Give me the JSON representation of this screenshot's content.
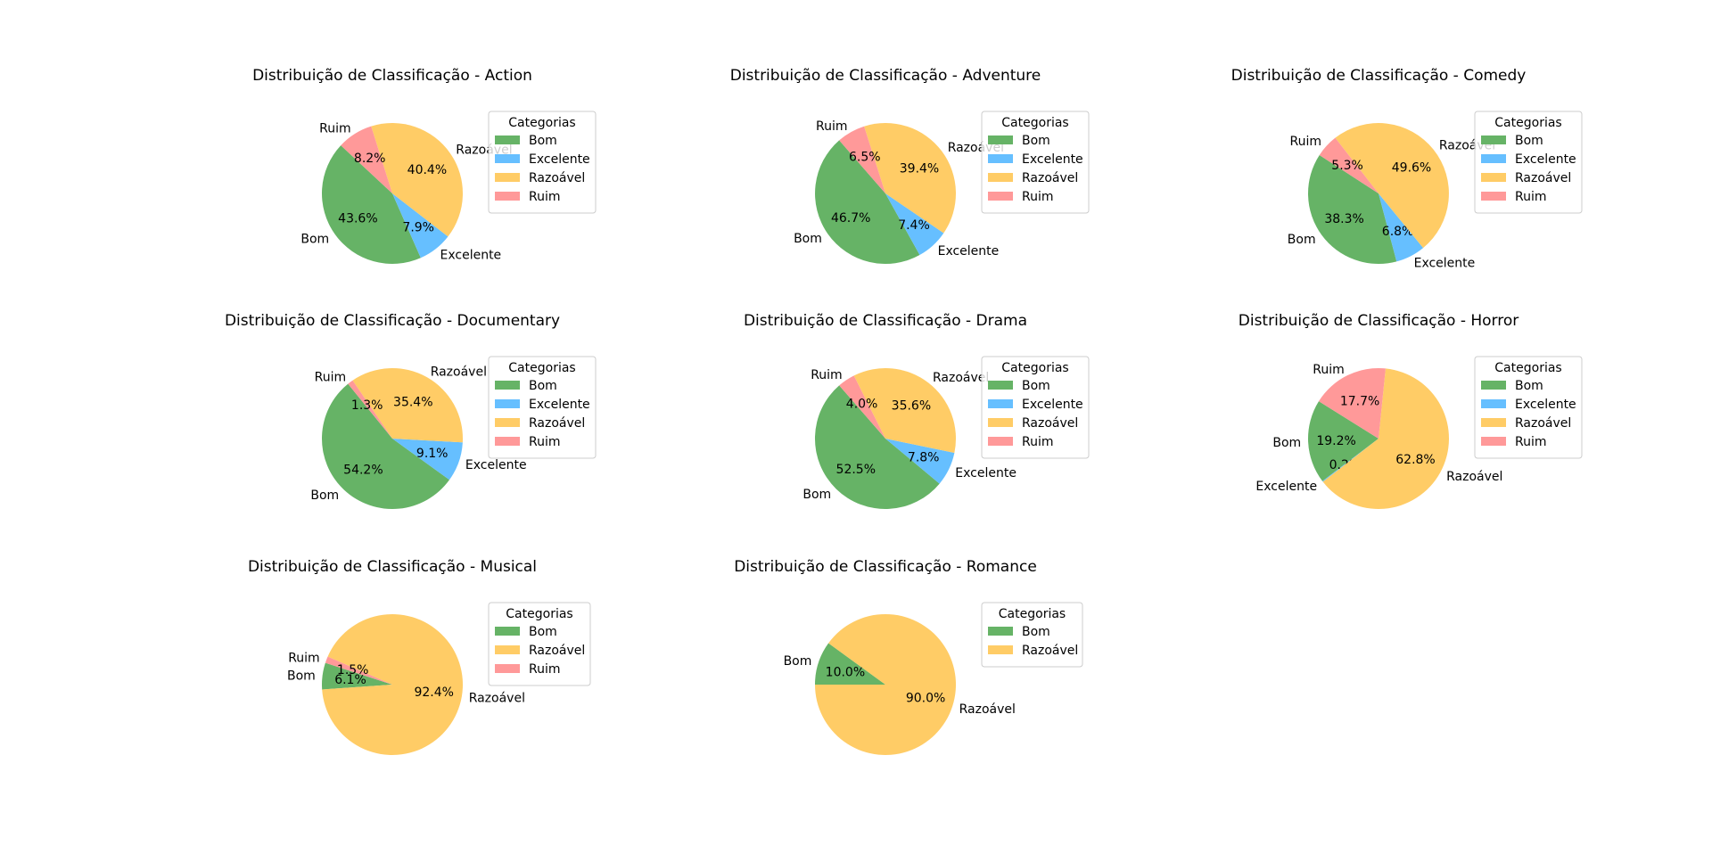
{
  "colors": {
    "Bom": "#66b366",
    "Excelente": "#66bfff",
    "Razoável": "#ffcc66",
    "Ruim": "#ff9999"
  },
  "legend_title": "Categorias",
  "chart_data": [
    {
      "type": "pie",
      "title": "Distribuição de Classificação - Action",
      "legend": "right",
      "slices": [
        {
          "label": "Bom",
          "value": 43.6,
          "pct": "43.6%"
        },
        {
          "label": "Excelente",
          "value": 7.9,
          "pct": "7.9%"
        },
        {
          "label": "Razoável",
          "value": 40.4,
          "pct": "40.4%"
        },
        {
          "label": "Ruim",
          "value": 8.2,
          "pct": "8.2%"
        }
      ]
    },
    {
      "type": "pie",
      "title": "Distribuição de Classificação - Adventure",
      "legend": "right",
      "slices": [
        {
          "label": "Bom",
          "value": 46.7,
          "pct": "46.7%"
        },
        {
          "label": "Excelente",
          "value": 7.4,
          "pct": "7.4%"
        },
        {
          "label": "Razoável",
          "value": 39.4,
          "pct": "39.4%"
        },
        {
          "label": "Ruim",
          "value": 6.5,
          "pct": "6.5%"
        }
      ]
    },
    {
      "type": "pie",
      "title": "Distribuição de Classificação - Comedy",
      "legend": "right",
      "slices": [
        {
          "label": "Bom",
          "value": 38.3,
          "pct": "38.3%"
        },
        {
          "label": "Excelente",
          "value": 6.8,
          "pct": "6.8%"
        },
        {
          "label": "Razoável",
          "value": 49.6,
          "pct": "49.6%"
        },
        {
          "label": "Ruim",
          "value": 5.3,
          "pct": "5.3%"
        }
      ]
    },
    {
      "type": "pie",
      "title": "Distribuição de Classificação - Documentary",
      "legend": "right",
      "slices": [
        {
          "label": "Bom",
          "value": 54.2,
          "pct": "54.2%"
        },
        {
          "label": "Excelente",
          "value": 9.1,
          "pct": "9.1%"
        },
        {
          "label": "Razoável",
          "value": 35.4,
          "pct": "35.4%"
        },
        {
          "label": "Ruim",
          "value": 1.3,
          "pct": "1.3%"
        }
      ]
    },
    {
      "type": "pie",
      "title": "Distribuição de Classificação - Drama",
      "legend": "right",
      "slices": [
        {
          "label": "Bom",
          "value": 52.5,
          "pct": "52.5%"
        },
        {
          "label": "Excelente",
          "value": 7.8,
          "pct": "7.8%"
        },
        {
          "label": "Razoável",
          "value": 35.6,
          "pct": "35.6%"
        },
        {
          "label": "Ruim",
          "value": 4.0,
          "pct": "4.0%"
        }
      ]
    },
    {
      "type": "pie",
      "title": "Distribuição de Classificação - Horror",
      "legend": "right",
      "slices": [
        {
          "label": "Bom",
          "value": 19.2,
          "pct": "19.2%"
        },
        {
          "label": "Excelente",
          "value": 0.2,
          "pct": "0.2%"
        },
        {
          "label": "Razoável",
          "value": 62.8,
          "pct": "62.8%"
        },
        {
          "label": "Ruim",
          "value": 17.7,
          "pct": "17.7%"
        }
      ]
    },
    {
      "type": "pie",
      "title": "Distribuição de Classificação - Musical",
      "legend": "right",
      "slices": [
        {
          "label": "Bom",
          "value": 6.1,
          "pct": "6.1%"
        },
        {
          "label": "Razoável",
          "value": 92.4,
          "pct": "92.4%"
        },
        {
          "label": "Ruim",
          "value": 1.5,
          "pct": "1.5%"
        }
      ]
    },
    {
      "type": "pie",
      "title": "Distribuição de Classificação - Romance",
      "legend": "right",
      "slices": [
        {
          "label": "Bom",
          "value": 10.0,
          "pct": "10.0%"
        },
        {
          "label": "Razoável",
          "value": 90.0,
          "pct": "90.0%"
        }
      ]
    }
  ]
}
